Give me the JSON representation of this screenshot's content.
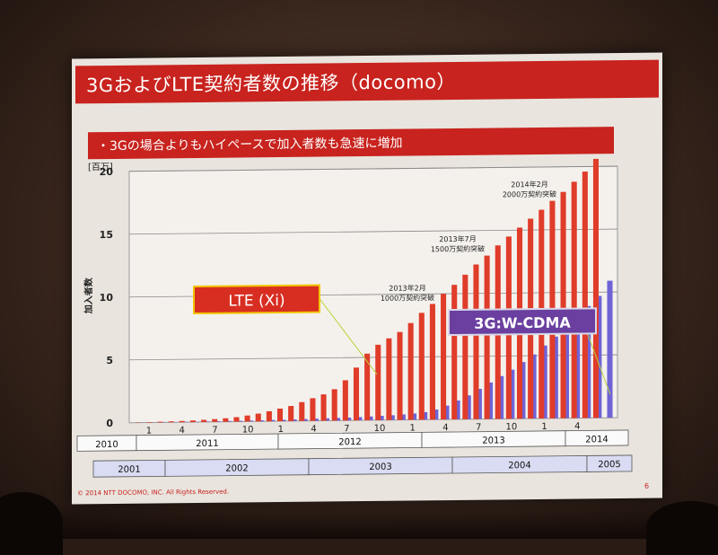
{
  "slide": {
    "title": "3GおよびLTE契約者数の推移（docomo）",
    "subtitle": "・3Gの場合よりもハイペースで加入者数も急速に増加",
    "footer": "© 2014 NTT DOCOMO, INC. All Rights Reserved.",
    "page_number": "6"
  },
  "colors": {
    "accent": "#c8231e",
    "lte_bar": "#e03c2a",
    "wcdma_bar": "#6f63d6",
    "background": "#e9e4de"
  },
  "chart_data": {
    "type": "bar",
    "title": "",
    "ylabel": "加入者数",
    "unit_label": "[百万]",
    "ylim": [
      0,
      20
    ],
    "yticks": [
      0,
      5,
      10,
      15,
      20
    ],
    "grid": true,
    "x_month_labels": [
      "1",
      "4",
      "7",
      "10",
      "1",
      "4",
      "7",
      "10",
      "1",
      "4",
      "7",
      "10",
      "1",
      "4"
    ],
    "lte_year_labels": [
      "2010",
      "2011",
      "2012",
      "2013",
      "2014"
    ],
    "wcdma_year_labels": [
      "2001",
      "2002",
      "2003",
      "2004",
      "2005"
    ],
    "series": [
      {
        "name": "LTE (Xi)",
        "values": [
          0.02,
          0.04,
          0.06,
          0.08,
          0.1,
          0.13,
          0.17,
          0.22,
          0.28,
          0.36,
          0.48,
          0.62,
          0.8,
          1.0,
          1.2,
          1.5,
          1.8,
          2.1,
          2.5,
          3.2,
          4.2,
          5.3,
          6.0,
          6.5,
          7.0,
          7.7,
          8.5,
          9.2,
          10.0,
          10.7,
          11.5,
          12.3,
          13.0,
          13.8,
          14.5,
          15.2,
          15.9,
          16.6,
          17.3,
          18.0,
          18.8,
          19.6,
          20.6
        ]
      },
      {
        "name": "3G:W-CDMA",
        "values": [
          0.01,
          0.01,
          0.02,
          0.02,
          0.03,
          0.03,
          0.04,
          0.05,
          0.06,
          0.07,
          0.08,
          0.09,
          0.1,
          0.11,
          0.13,
          0.15,
          0.17,
          0.19,
          0.21,
          0.23,
          0.26,
          0.3,
          0.34,
          0.38,
          0.43,
          0.5,
          0.6,
          0.8,
          1.1,
          1.5,
          1.9,
          2.4,
          2.9,
          3.4,
          3.9,
          4.5,
          5.1,
          5.8,
          6.5,
          7.3,
          8.1,
          8.9,
          9.7,
          10.9
        ]
      }
    ],
    "annotations": [
      {
        "text": "2013年2月\n1000万契約突破",
        "x_index": 28,
        "value": 10.0
      },
      {
        "text": "2013年7月\n1500万契約突破",
        "x_index": 35,
        "value": 15.2
      },
      {
        "text": "2014年2月\n2000万契約突破",
        "x_index": 42,
        "value": 20.6
      }
    ]
  }
}
